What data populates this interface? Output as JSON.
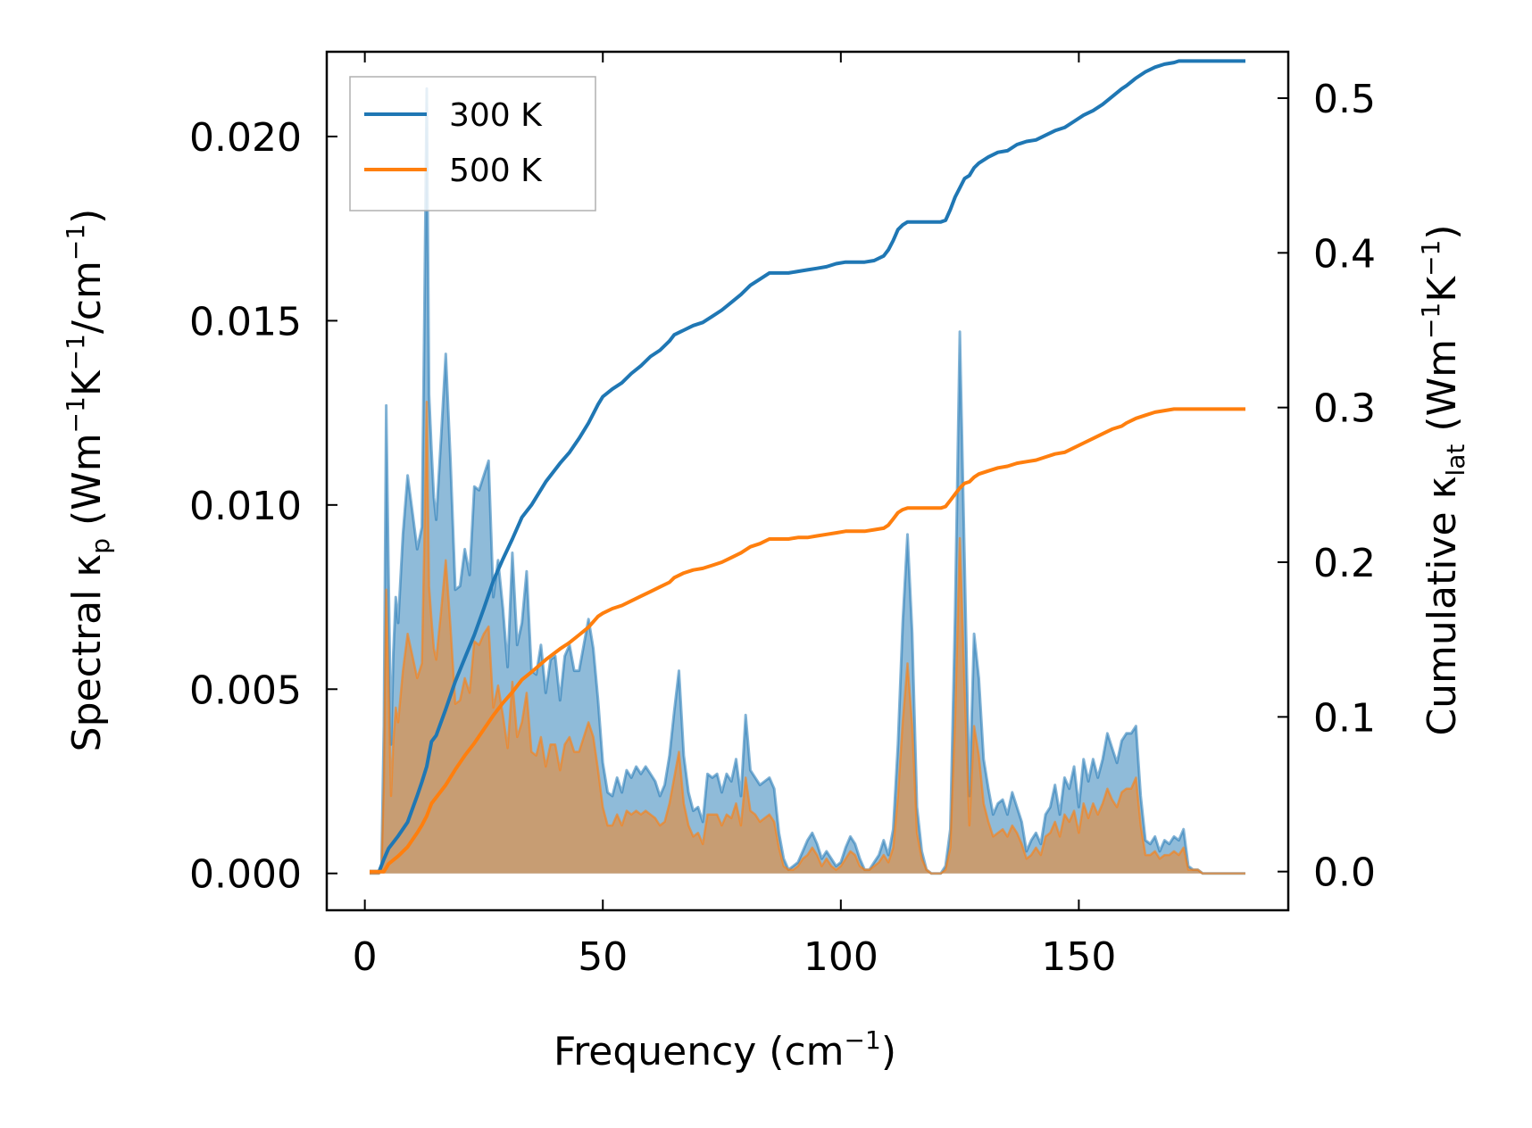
{
  "chart_data": {
    "type": "line",
    "xlabel": "Frequency (cm",
    "xlabel_sup": "−1",
    "xlabel_tail": ")",
    "ylabel_left": {
      "prefix": "Spectral κ",
      "sub": "p",
      "unit_open": " (Wm",
      "sup1": "−1",
      "mid": "K",
      "sup2": "−1",
      "tail": "/cm",
      "sup3": "−1",
      "close": ")"
    },
    "ylabel_right": {
      "prefix": "Cumulative κ",
      "sub": "lat",
      "unit_open": " (Wm",
      "sup1": "−1",
      "mid": "K",
      "sup2": "−1",
      "close": ")"
    },
    "xlim": [
      -8,
      194
    ],
    "ylim_left": [
      -0.001,
      0.0223
    ],
    "ylim_right": [
      -0.025,
      0.53
    ],
    "x_ticks": [
      0,
      50,
      100,
      150
    ],
    "x_tick_labels": [
      "0",
      "50",
      "100",
      "150"
    ],
    "y_left_ticks": [
      0.0,
      0.005,
      0.01,
      0.015,
      0.02
    ],
    "y_left_tick_labels": [
      "0.000",
      "0.005",
      "0.010",
      "0.015",
      "0.020"
    ],
    "y_right_ticks": [
      0.0,
      0.1,
      0.2,
      0.3,
      0.4,
      0.5
    ],
    "y_right_tick_labels": [
      "0.0",
      "0.1",
      "0.2",
      "0.3",
      "0.4",
      "0.5"
    ],
    "legend": {
      "position": "top-left",
      "entries": [
        "300 K",
        "500 K"
      ]
    },
    "colors": {
      "t300": "#1f77b4",
      "t500": "#ff7f0e",
      "fill300": "#1f77b4",
      "fill500": "#ff7f0e"
    },
    "spectral_x": [
      1,
      2,
      3,
      3.5,
      4,
      4.5,
      5,
      5.5,
      6,
      6.5,
      7,
      8,
      9,
      10,
      11,
      12,
      12.5,
      13,
      13.5,
      14,
      14.5,
      15,
      16,
      17,
      18,
      19,
      20,
      21,
      22,
      23,
      24,
      25,
      26,
      27,
      28,
      29,
      30,
      31,
      32,
      33,
      34,
      35,
      36,
      37,
      38,
      39,
      40,
      41,
      42,
      43,
      44,
      45,
      46,
      47,
      48,
      49,
      50,
      51,
      52,
      53,
      54,
      55,
      56,
      57,
      58,
      59,
      60,
      61,
      62,
      63,
      64,
      65,
      66,
      67,
      68,
      69,
      70,
      71,
      72,
      73,
      74,
      75,
      76,
      77,
      78,
      79,
      80,
      81,
      82,
      83,
      84,
      85,
      86,
      87,
      88,
      89,
      90,
      91,
      92,
      93,
      94,
      95,
      96,
      97,
      98,
      99,
      100,
      101,
      102,
      103,
      104,
      105,
      106,
      107,
      108,
      109,
      110,
      111,
      112,
      113,
      114,
      115,
      116,
      117,
      118,
      119,
      120,
      121,
      122,
      123,
      124,
      125,
      126,
      127,
      128,
      129,
      130,
      131,
      132,
      133,
      134,
      135,
      136,
      137,
      138,
      139,
      140,
      141,
      142,
      143,
      144,
      145,
      146,
      147,
      148,
      149,
      150,
      151,
      152,
      153,
      154,
      155,
      156,
      157,
      158,
      159,
      160,
      161,
      162,
      163,
      164,
      165,
      166,
      167,
      168,
      169,
      170,
      171,
      172,
      173,
      174,
      175,
      176,
      177,
      178,
      179,
      180,
      181,
      182,
      183,
      184,
      185
    ],
    "spectral_300": [
      0,
      0,
      0,
      0.0002,
      0.004,
      0.0127,
      0.008,
      0.0035,
      0.006,
      0.0075,
      0.0068,
      0.0092,
      0.0108,
      0.0098,
      0.0088,
      0.0094,
      0.015,
      0.0213,
      0.013,
      0.0115,
      0.0102,
      0.0096,
      0.0118,
      0.0141,
      0.0112,
      0.0077,
      0.0078,
      0.0088,
      0.0081,
      0.0105,
      0.0104,
      0.0108,
      0.0112,
      0.0075,
      0.0085,
      0.0072,
      0.0056,
      0.0087,
      0.0062,
      0.0068,
      0.0082,
      0.0055,
      0.0054,
      0.0062,
      0.0049,
      0.0058,
      0.0059,
      0.0047,
      0.0059,
      0.0062,
      0.0055,
      0.0055,
      0.0062,
      0.0069,
      0.0061,
      0.0047,
      0.003,
      0.0022,
      0.0021,
      0.0026,
      0.0022,
      0.0028,
      0.0026,
      0.0029,
      0.0027,
      0.0029,
      0.0027,
      0.0025,
      0.0021,
      0.0024,
      0.0032,
      0.0044,
      0.0055,
      0.0032,
      0.0022,
      0.0017,
      0.0018,
      0.0014,
      0.0027,
      0.0026,
      0.0027,
      0.0022,
      0.0027,
      0.0025,
      0.0031,
      0.0021,
      0.0043,
      0.0028,
      0.0026,
      0.0024,
      0.0025,
      0.0026,
      0.0023,
      0.0011,
      0.0004,
      0.0001,
      0.0002,
      0.0003,
      0.0006,
      0.0009,
      0.0011,
      0.0008,
      0.0004,
      0.0006,
      0.0004,
      0.0002,
      0.0003,
      0.0007,
      0.001,
      0.0008,
      0.0004,
      0.0001,
      0.0001,
      0.0003,
      0.0005,
      0.0009,
      0.0005,
      0.0012,
      0.0035,
      0.0068,
      0.0092,
      0.0065,
      0.0018,
      0.0006,
      0.0001,
      0,
      0,
      0,
      0.0002,
      0.0012,
      0.007,
      0.0147,
      0.0085,
      0.0021,
      0.0065,
      0.0053,
      0.0031,
      0.0023,
      0.0016,
      0.0019,
      0.002,
      0.0016,
      0.0022,
      0.0018,
      0.0014,
      0.0006,
      0.0009,
      0.0011,
      0.0008,
      0.0016,
      0.0018,
      0.0024,
      0.0016,
      0.0026,
      0.0023,
      0.0029,
      0.0018,
      0.0031,
      0.0025,
      0.0031,
      0.0026,
      0.0031,
      0.0038,
      0.0034,
      0.003,
      0.0036,
      0.0038,
      0.0038,
      0.004,
      0.0021,
      0.0009,
      0.0008,
      0.001,
      0.0006,
      0.0009,
      0.0008,
      0.001,
      0.0009,
      0.0012,
      0.0002,
      0.0001,
      0.0001,
      0,
      0,
      0,
      0,
      0,
      0,
      0,
      0,
      0,
      0,
      0,
      0,
      0,
      0,
      0,
      0,
      0,
      0,
      0,
      0,
      0,
      0,
      0,
      0,
      0,
      0
    ],
    "spectral_500": [
      0,
      0,
      0,
      0.0001,
      0.0024,
      0.0077,
      0.005,
      0.0021,
      0.0036,
      0.0045,
      0.0041,
      0.0055,
      0.0065,
      0.0059,
      0.0053,
      0.0057,
      0.009,
      0.0128,
      0.0078,
      0.0069,
      0.0061,
      0.0058,
      0.0071,
      0.0085,
      0.0067,
      0.0046,
      0.0047,
      0.0053,
      0.0049,
      0.0063,
      0.0062,
      0.0065,
      0.0067,
      0.0045,
      0.0051,
      0.0043,
      0.0034,
      0.0052,
      0.0037,
      0.0041,
      0.0049,
      0.0033,
      0.0032,
      0.0037,
      0.0029,
      0.0035,
      0.0035,
      0.0028,
      0.0035,
      0.0037,
      0.0033,
      0.0033,
      0.0037,
      0.0041,
      0.0037,
      0.0028,
      0.0018,
      0.0013,
      0.0013,
      0.0016,
      0.0013,
      0.0017,
      0.0016,
      0.0017,
      0.0016,
      0.0017,
      0.0016,
      0.0015,
      0.0013,
      0.0014,
      0.0019,
      0.0026,
      0.0033,
      0.0019,
      0.0013,
      0.001,
      0.0011,
      0.0008,
      0.0016,
      0.0016,
      0.0016,
      0.0013,
      0.0016,
      0.0015,
      0.0019,
      0.0013,
      0.0026,
      0.0017,
      0.0016,
      0.0014,
      0.0015,
      0.0016,
      0.0014,
      0.0007,
      0.0002,
      0.0001,
      0.0001,
      0.0002,
      0.0004,
      0.0005,
      0.0007,
      0.0005,
      0.0002,
      0.0004,
      0.0002,
      0.0001,
      0.0002,
      0.0004,
      0.0006,
      0.0005,
      0.0002,
      0.0001,
      0.0001,
      0.0002,
      0.0003,
      0.0005,
      0.0003,
      0.0007,
      0.0021,
      0.0041,
      0.0057,
      0.004,
      0.0011,
      0.0004,
      0.0001,
      0,
      0,
      0,
      0.0001,
      0.0007,
      0.0042,
      0.0091,
      0.0051,
      0.0013,
      0.004,
      0.0032,
      0.0019,
      0.0014,
      0.001,
      0.0011,
      0.0012,
      0.001,
      0.0013,
      0.0011,
      0.0008,
      0.0004,
      0.0005,
      0.0007,
      0.0005,
      0.001,
      0.0011,
      0.0014,
      0.001,
      0.0016,
      0.0014,
      0.0017,
      0.0011,
      0.0019,
      0.0015,
      0.0019,
      0.0016,
      0.0019,
      0.0023,
      0.002,
      0.0018,
      0.0022,
      0.0023,
      0.0023,
      0.0026,
      0.0013,
      0.0005,
      0.0005,
      0.0006,
      0.0004,
      0.0005,
      0.0005,
      0.0006,
      0.0005,
      0.0007,
      0.0001,
      0.0001,
      0.0001,
      0,
      0,
      0,
      0,
      0,
      0,
      0,
      0,
      0,
      0,
      0,
      0,
      0,
      0,
      0,
      0,
      0,
      0,
      0,
      0,
      0,
      0,
      0,
      0,
      0,
      0
    ],
    "cumulative_x": [
      1,
      3,
      4,
      5,
      7,
      9,
      11,
      12,
      13,
      14,
      15,
      17,
      19,
      21,
      23,
      25,
      27,
      29,
      31,
      33,
      35,
      38,
      41,
      43,
      45,
      47,
      49,
      50,
      52,
      54,
      56,
      58,
      60,
      62,
      64,
      65,
      67,
      69,
      71,
      73,
      75,
      77,
      79,
      81,
      83,
      85,
      87,
      89,
      91,
      93,
      95,
      97,
      99,
      101,
      103,
      105,
      107,
      109,
      110,
      111,
      112,
      113,
      114,
      115,
      117,
      119,
      121,
      122,
      123,
      124,
      125,
      126,
      127,
      128,
      129,
      131,
      133,
      135,
      137,
      139,
      141,
      143,
      145,
      147,
      149,
      151,
      153,
      155,
      157,
      159,
      160,
      162,
      164,
      166,
      168,
      170,
      171,
      173,
      175,
      177,
      179,
      181,
      183,
      185
    ],
    "cumulative_300": [
      0,
      0,
      0.008,
      0.015,
      0.023,
      0.032,
      0.049,
      0.058,
      0.068,
      0.084,
      0.088,
      0.105,
      0.123,
      0.138,
      0.153,
      0.17,
      0.188,
      0.202,
      0.215,
      0.229,
      0.237,
      0.252,
      0.264,
      0.271,
      0.28,
      0.29,
      0.302,
      0.307,
      0.312,
      0.316,
      0.322,
      0.327,
      0.333,
      0.337,
      0.343,
      0.347,
      0.35,
      0.353,
      0.355,
      0.359,
      0.363,
      0.368,
      0.373,
      0.379,
      0.383,
      0.387,
      0.387,
      0.387,
      0.388,
      0.389,
      0.39,
      0.391,
      0.393,
      0.394,
      0.394,
      0.394,
      0.395,
      0.398,
      0.402,
      0.408,
      0.415,
      0.418,
      0.42,
      0.42,
      0.42,
      0.42,
      0.42,
      0.421,
      0.428,
      0.436,
      0.442,
      0.448,
      0.45,
      0.455,
      0.458,
      0.462,
      0.465,
      0.466,
      0.47,
      0.472,
      0.473,
      0.476,
      0.479,
      0.481,
      0.485,
      0.489,
      0.492,
      0.496,
      0.501,
      0.506,
      0.508,
      0.513,
      0.517,
      0.52,
      0.522,
      0.523,
      0.524,
      0.524,
      0.524,
      0.524,
      0.524,
      0.524,
      0.524,
      0.524
    ],
    "cumulative_500": [
      0,
      0,
      0,
      0.005,
      0.01,
      0.016,
      0.025,
      0.03,
      0.036,
      0.044,
      0.048,
      0.056,
      0.066,
      0.075,
      0.083,
      0.092,
      0.101,
      0.109,
      0.116,
      0.124,
      0.129,
      0.137,
      0.144,
      0.148,
      0.153,
      0.158,
      0.165,
      0.167,
      0.17,
      0.172,
      0.175,
      0.178,
      0.181,
      0.184,
      0.187,
      0.19,
      0.193,
      0.195,
      0.196,
      0.198,
      0.2,
      0.203,
      0.206,
      0.21,
      0.212,
      0.215,
      0.215,
      0.215,
      0.216,
      0.216,
      0.217,
      0.218,
      0.219,
      0.22,
      0.22,
      0.22,
      0.221,
      0.222,
      0.224,
      0.228,
      0.232,
      0.234,
      0.235,
      0.235,
      0.235,
      0.235,
      0.235,
      0.236,
      0.24,
      0.244,
      0.248,
      0.251,
      0.252,
      0.255,
      0.257,
      0.259,
      0.261,
      0.262,
      0.264,
      0.265,
      0.266,
      0.268,
      0.27,
      0.271,
      0.274,
      0.277,
      0.28,
      0.283,
      0.286,
      0.288,
      0.29,
      0.293,
      0.295,
      0.297,
      0.298,
      0.299,
      0.299,
      0.299,
      0.299,
      0.299,
      0.299,
      0.299,
      0.299,
      0.299
    ]
  }
}
